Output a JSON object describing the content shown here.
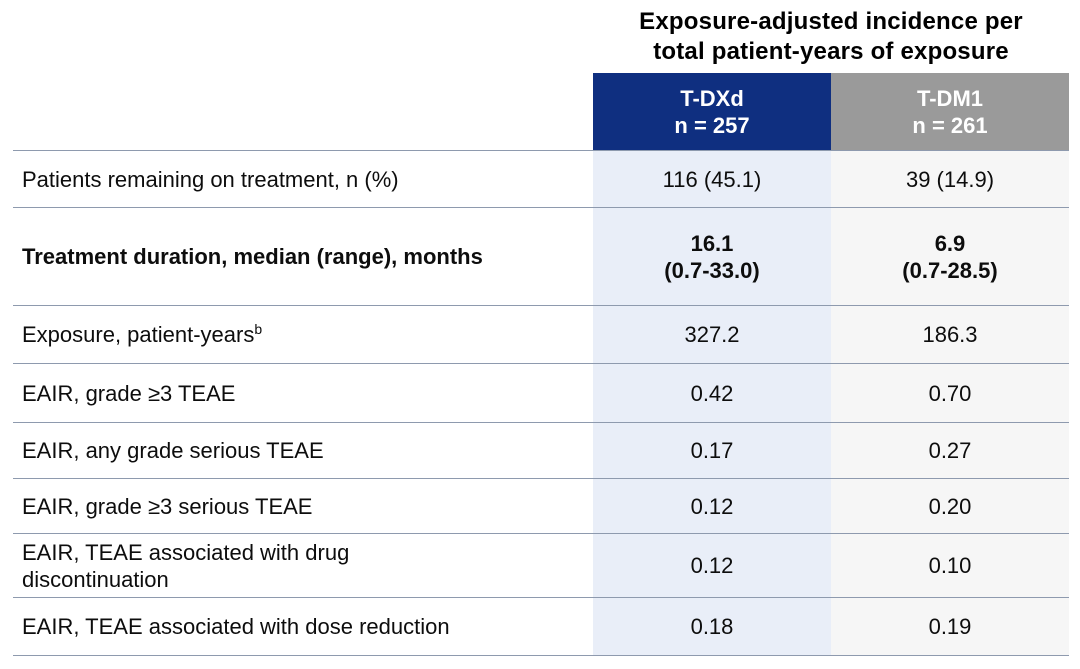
{
  "title": {
    "text": "Exposure-adjusted incidence per\ntotal patient-years of exposure"
  },
  "table": {
    "columns": [
      {
        "name": "T-DXd",
        "n": "n = 257"
      },
      {
        "name": "T-DM1",
        "n": "n = 261"
      }
    ],
    "rows": [
      {
        "label": "Patients remaining on treatment, n (%)",
        "sup": "",
        "tdxd": "116 (45.1)",
        "tdm1": "39 (14.9)",
        "bold": false
      },
      {
        "label": "Treatment duration, median (range), months",
        "sup": "",
        "tdxd": "16.1\n(0.7-33.0)",
        "tdm1": "6.9\n(0.7-28.5)",
        "bold": true
      },
      {
        "label": "Exposure, patient-years",
        "sup": "b",
        "tdxd": "327.2",
        "tdm1": "186.3",
        "bold": false
      },
      {
        "label": "EAIR, grade ≥3 TEAE",
        "sup": "",
        "tdxd": "0.42",
        "tdm1": "0.70",
        "bold": false
      },
      {
        "label": "EAIR, any grade serious TEAE",
        "sup": "",
        "tdxd": "0.17",
        "tdm1": "0.27",
        "bold": false
      },
      {
        "label": "EAIR, grade ≥3 serious TEAE",
        "sup": "",
        "tdxd": "0.12",
        "tdm1": "0.20",
        "bold": false
      },
      {
        "label": "EAIR, TEAE associated with drug\ndiscontinuation",
        "sup": "",
        "tdxd": "0.12",
        "tdm1": "0.10",
        "bold": false
      },
      {
        "label": "EAIR, TEAE associated with dose reduction",
        "sup": "",
        "tdxd": "0.18",
        "tdm1": "0.19",
        "bold": false
      }
    ]
  },
  "colors": {
    "tdxd_header": "#0f2f80",
    "tdm1_header": "#9a9a9a",
    "tdxd_band": "#e9eef8",
    "tdm1_band": "#f6f6f6",
    "border": "#8e9aae",
    "header_text": "#ffffff",
    "text": "#0d0d0d"
  },
  "chart_data": {
    "type": "table",
    "title": "Exposure-adjusted incidence per total patient-years of exposure",
    "columns": [
      "",
      "T-DXd (n = 257)",
      "T-DM1 (n = 261)"
    ],
    "rows": [
      [
        "Patients remaining on treatment, n (%)",
        "116 (45.1)",
        "39 (14.9)"
      ],
      [
        "Treatment duration, median (range), months",
        "16.1 (0.7-33.0)",
        "6.9 (0.7-28.5)"
      ],
      [
        "Exposure, patient-years[b]",
        "327.2",
        "186.3"
      ],
      [
        "EAIR, grade ≥3 TEAE",
        "0.42",
        "0.70"
      ],
      [
        "EAIR, any grade serious TEAE",
        "0.17",
        "0.27"
      ],
      [
        "EAIR, grade ≥3 serious TEAE",
        "0.12",
        "0.20"
      ],
      [
        "EAIR, TEAE associated with drug discontinuation",
        "0.12",
        "0.10"
      ],
      [
        "EAIR, TEAE associated with dose reduction",
        "0.18",
        "0.19"
      ]
    ]
  }
}
